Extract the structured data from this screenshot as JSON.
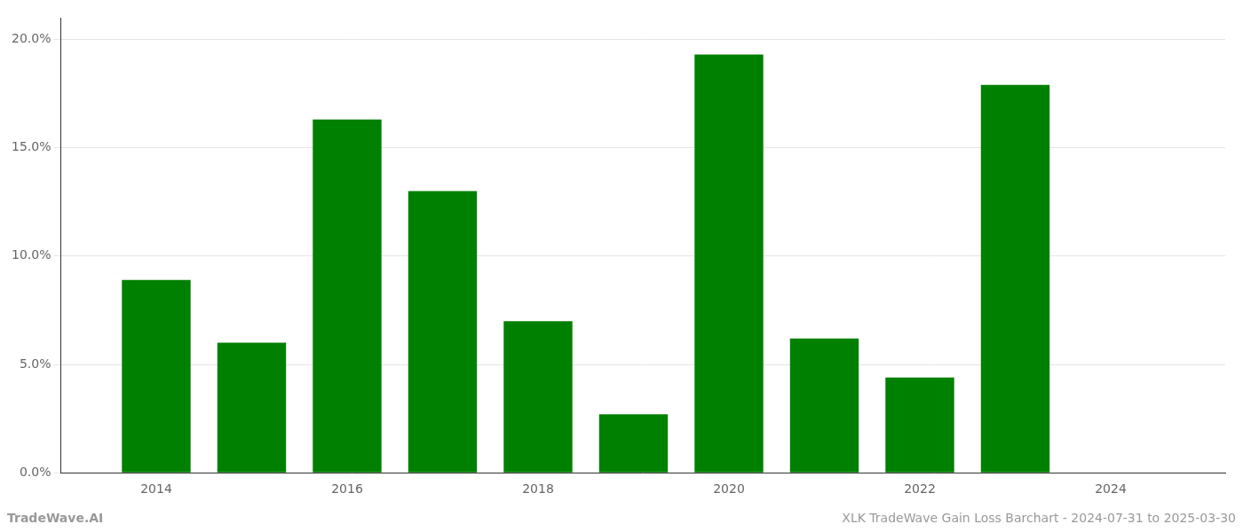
{
  "chart_data": {
    "type": "bar",
    "x": [
      2014,
      2015,
      2016,
      2017,
      2018,
      2019,
      2020,
      2021,
      2022,
      2023
    ],
    "values": [
      0.089,
      0.06,
      0.163,
      0.13,
      0.07,
      0.027,
      0.193,
      0.062,
      0.044,
      0.179
    ],
    "color": "#008000",
    "xlim": [
      2013.0,
      2025.2
    ],
    "xticks": [
      2014,
      2016,
      2018,
      2020,
      2022,
      2024
    ],
    "ylim": [
      0,
      0.21
    ],
    "yticks": [
      {
        "value": 0.0,
        "label": "0.0%"
      },
      {
        "value": 0.05,
        "label": "5.0%"
      },
      {
        "value": 0.1,
        "label": "10.0%"
      },
      {
        "value": 0.15,
        "label": "15.0%"
      },
      {
        "value": 0.2,
        "label": "20.0%"
      }
    ],
    "grid": "y",
    "annotations": [
      "TradeWave.AI",
      "XLK TradeWave Gain Loss Barchart - 2024-07-31 to 2025-03-30"
    ]
  }
}
